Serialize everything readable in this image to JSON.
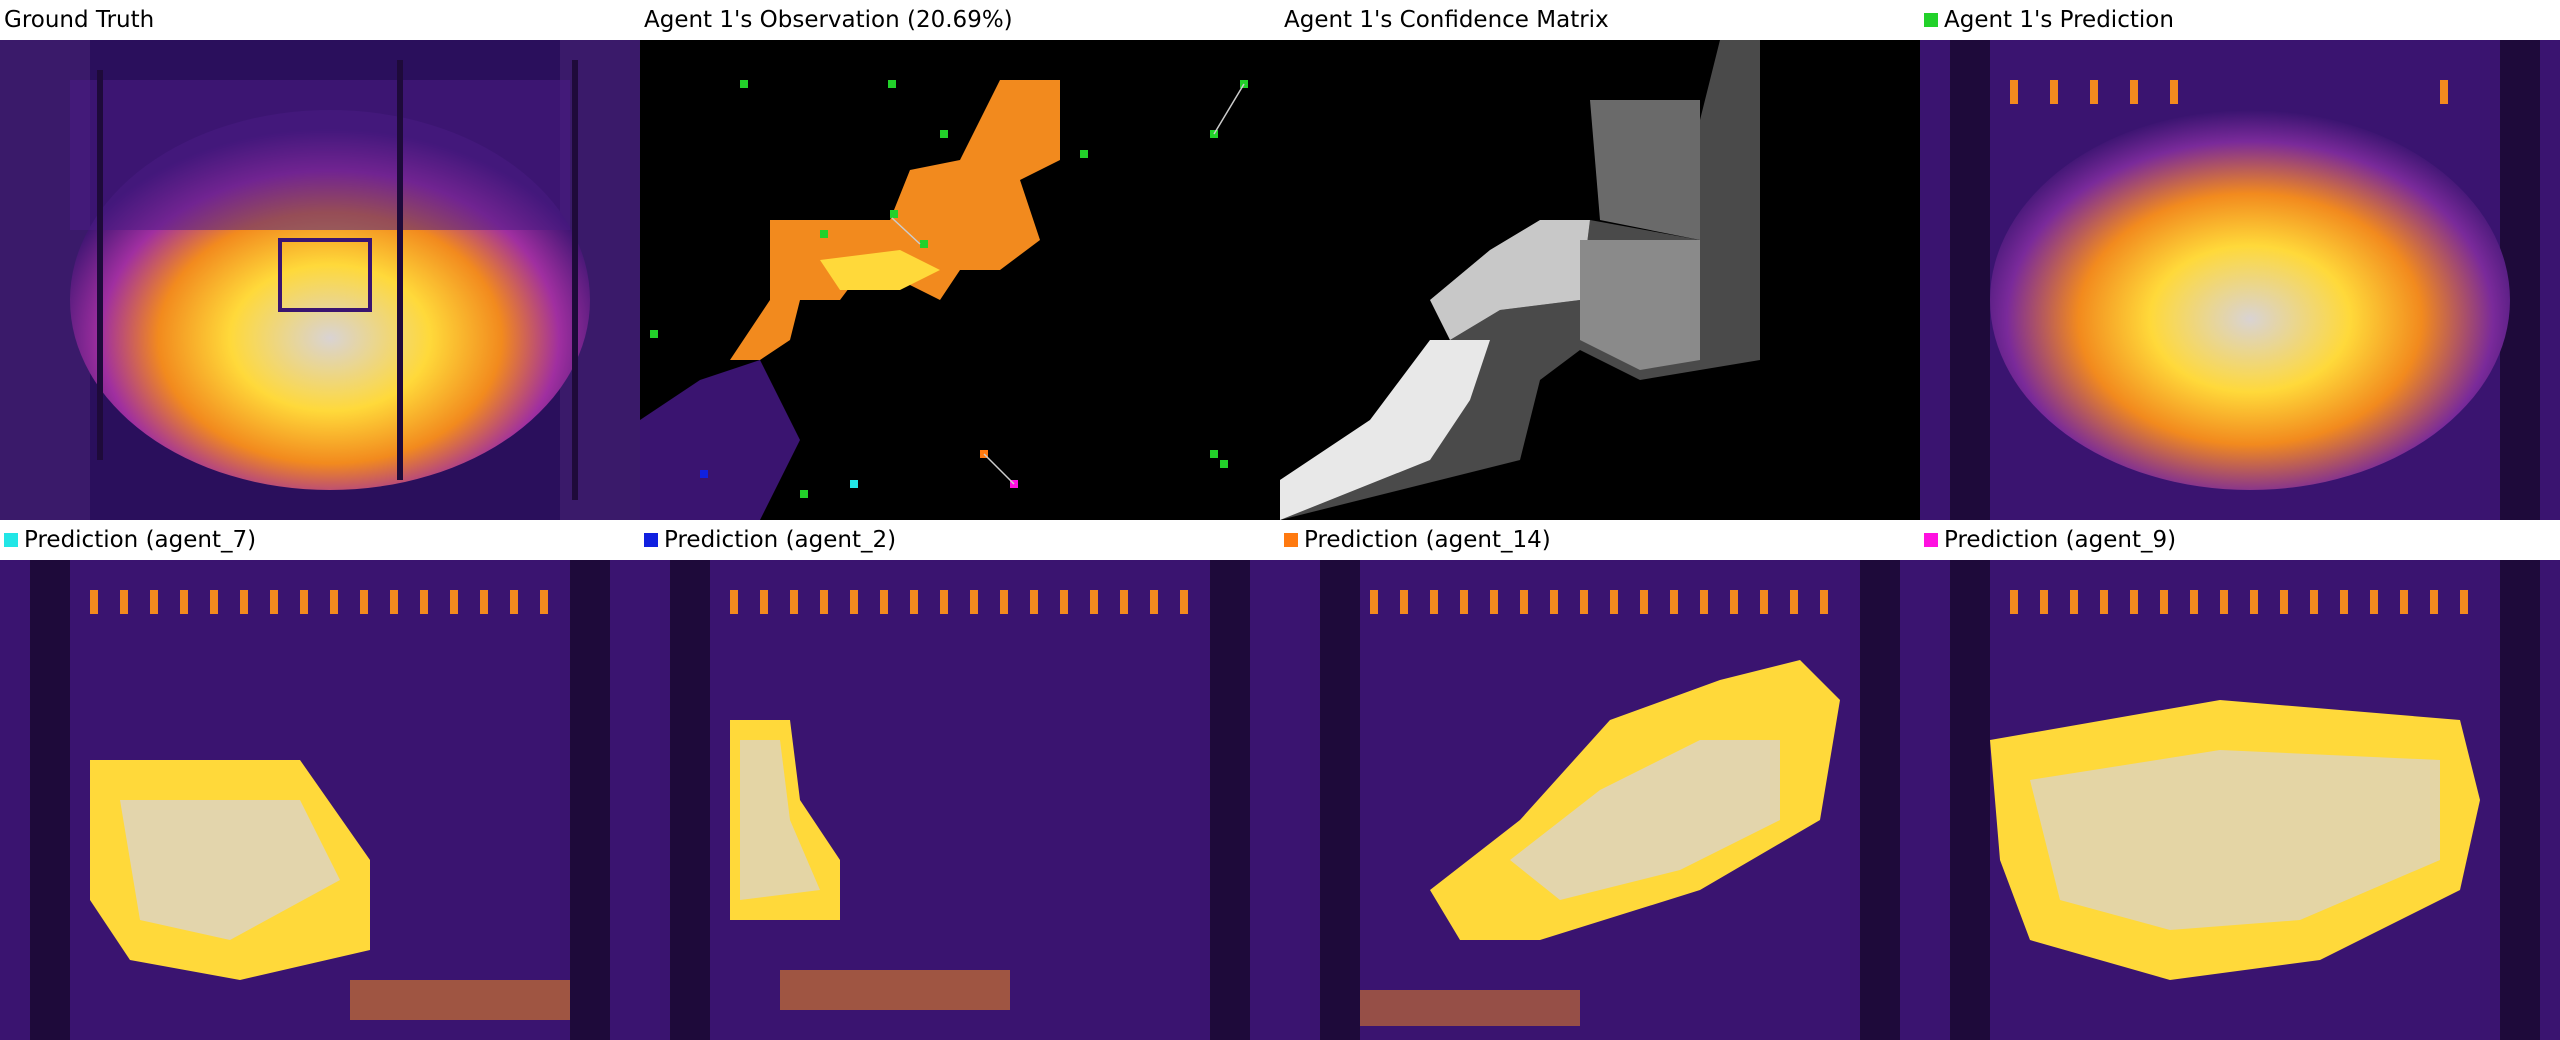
{
  "panels": [
    {
      "id": "ground-truth",
      "title": "Ground Truth",
      "swatch": null
    },
    {
      "id": "agent1-observation",
      "title": "Agent 1's Observation (20.69%)",
      "swatch": null
    },
    {
      "id": "agent1-confidence",
      "title": "Agent 1's Confidence Matrix",
      "swatch": null
    },
    {
      "id": "agent1-prediction",
      "title": "Agent 1's Prediction",
      "swatch": "#22d12a"
    },
    {
      "id": "agent7-prediction",
      "title": "Prediction (agent_7)",
      "swatch": "#22e6e6"
    },
    {
      "id": "agent2-prediction",
      "title": "Prediction (agent_2)",
      "swatch": "#1020e0"
    },
    {
      "id": "agent14-prediction",
      "title": "Prediction (agent_14)",
      "swatch": "#ff7a10"
    },
    {
      "id": "agent9-prediction",
      "title": "Prediction (agent_9)",
      "swatch": "#ff10e0"
    }
  ],
  "colors": {
    "background_dark": "#2a0f5c",
    "purple": "#5a1f9a",
    "magenta": "#a02fa0",
    "orange": "#f28a1e",
    "yellow": "#ffd93a",
    "grey_ash": "#c9c2c6"
  }
}
